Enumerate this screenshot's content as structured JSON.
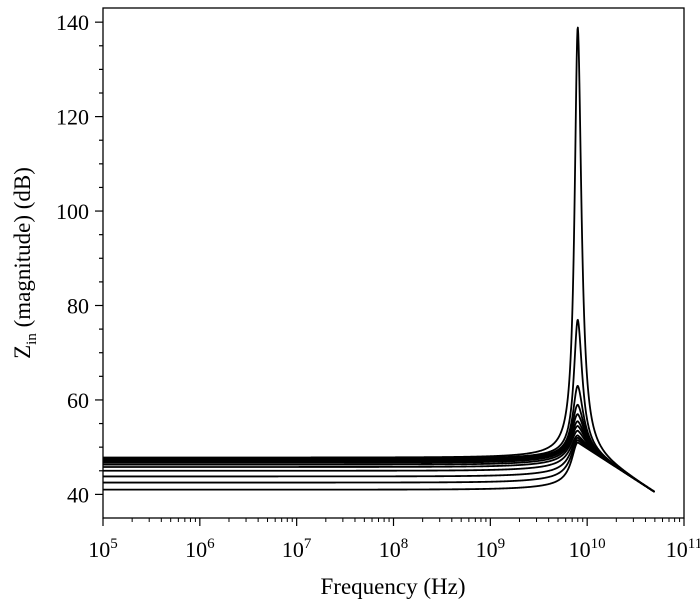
{
  "chart_data": {
    "type": "line",
    "title": "",
    "xlabel": "Frequency (Hz)",
    "ylabel_main": "Z",
    "ylabel_sub": "in",
    "ylabel_rest": " (magnitude) (dB)",
    "xscale": "log",
    "xlim": [
      100000,
      100000000000
    ],
    "ylim": [
      35,
      143
    ],
    "grid": false,
    "legend": "none",
    "x_ticks": [
      {
        "exp": 5,
        "base": "10",
        "pow": "5"
      },
      {
        "exp": 6,
        "base": "10",
        "pow": "6"
      },
      {
        "exp": 7,
        "base": "10",
        "pow": "7"
      },
      {
        "exp": 8,
        "base": "10",
        "pow": "8"
      },
      {
        "exp": 9,
        "base": "10",
        "pow": "9"
      },
      {
        "exp": 10,
        "base": "10",
        "pow": "10"
      },
      {
        "exp": 11,
        "base": "10",
        "pow": "11"
      }
    ],
    "y_ticks": [
      40,
      60,
      80,
      100,
      120,
      140
    ],
    "resonance_frequency": 8000000000,
    "series": [
      {
        "low": 41.0,
        "peak": 51.0
      },
      {
        "low": 42.5,
        "peak": 51.5
      },
      {
        "low": 43.8,
        "peak": 52.0
      },
      {
        "low": 45.0,
        "peak": 52.5
      },
      {
        "low": 45.8,
        "peak": 53.5
      },
      {
        "low": 46.3,
        "peak": 54.5
      },
      {
        "low": 46.7,
        "peak": 55.5
      },
      {
        "low": 47.0,
        "peak": 57.0
      },
      {
        "low": 47.2,
        "peak": 59.0
      },
      {
        "low": 47.4,
        "peak": 63.0
      },
      {
        "low": 47.6,
        "peak": 77.0
      },
      {
        "low": 47.8,
        "peak": 139.0
      }
    ],
    "high_freq_end": {
      "x": 50000000000,
      "y": 40.5
    },
    "colors": {
      "line": "#000000",
      "background": "#ffffff"
    }
  }
}
